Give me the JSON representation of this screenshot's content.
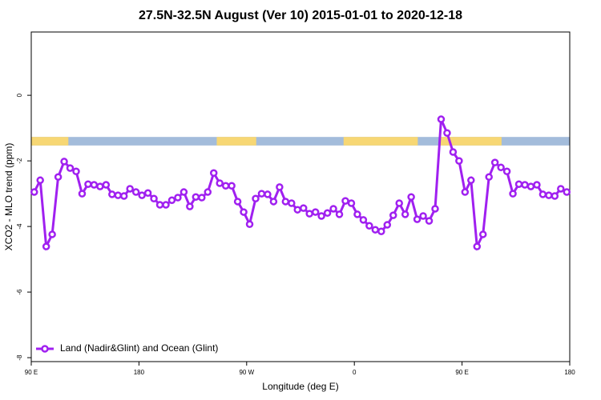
{
  "chart_data": {
    "type": "line",
    "title": "27.5N-32.5N August (Ver 10)   2015-01-01 to 2020-12-18",
    "x_label": "Longitude (deg E)",
    "y_label": "XCO2 - MLO trend (ppm)",
    "xlim": [
      90,
      540
    ],
    "xticks": [
      {
        "value": 90,
        "label": "90 E"
      },
      180,
      {
        "value": 270,
        "label": "90 W"
      },
      {
        "value": 360,
        "label": "0"
      },
      {
        "value": 450,
        "label": "90 E"
      },
      {
        "value": 540,
        "label": "180"
      }
    ],
    "ylim": [
      -8.12,
      1.93
    ],
    "yticks": [
      -8,
      -6,
      -4,
      -2,
      0
    ],
    "legend_position": "bottom-left",
    "land_ocean_band": {
      "ylim": [
        -1.53,
        -1.27
      ],
      "land_color": "#f7d774",
      "ocean_color": "#a3bcdb",
      "land": [
        [
          90,
          121
        ],
        [
          245,
          278
        ],
        [
          351,
          413
        ],
        [
          431,
          483
        ]
      ]
    },
    "x": [
      92.5,
      97.5,
      102.5,
      107.5,
      112.5,
      117.5,
      122.5,
      127.5,
      132.5,
      137.5,
      142.5,
      147.5,
      152.5,
      157.5,
      162.5,
      167.5,
      172.5,
      177.5,
      182.5,
      187.5,
      192.5,
      197.5,
      202.5,
      207.5,
      212.5,
      217.5,
      222.5,
      227.5,
      232.5,
      237.5,
      242.5,
      247.5,
      252.5,
      257.5,
      262.5,
      267.5,
      272.5,
      277.5,
      282.5,
      287.5,
      292.5,
      297.5,
      302.5,
      307.5,
      312.5,
      317.5,
      322.5,
      327.5,
      332.5,
      337.5,
      342.5,
      347.5,
      352.5,
      357.5,
      362.5,
      367.5,
      372.5,
      377.5,
      382.5,
      387.5,
      392.5,
      397.5,
      402.5,
      407.5,
      412.5,
      417.5,
      422.5,
      427.5,
      432.5,
      437.5,
      442.5,
      447.5,
      452.5,
      457.5,
      462.5,
      467.5,
      472.5,
      477.5,
      482.5,
      487.5,
      492.5,
      497.5,
      502.5,
      507.5,
      512.5,
      517.5,
      522.5,
      527.5,
      532.5,
      537.5
    ],
    "series": [
      {
        "name": "Land (Nadir&Glint) and Ocean (Glint)",
        "color": "#a020f0",
        "values": [
          -2.95,
          -2.59,
          -4.61,
          -4.24,
          -2.49,
          -2.02,
          -2.22,
          -2.32,
          -3.0,
          -2.71,
          -2.73,
          -2.78,
          -2.73,
          -3.02,
          -3.05,
          -3.07,
          -2.85,
          -2.95,
          -3.05,
          -2.98,
          -3.15,
          -3.34,
          -3.34,
          -3.2,
          -3.12,
          -2.95,
          -3.39,
          -3.1,
          -3.12,
          -2.95,
          -2.37,
          -2.68,
          -2.76,
          -2.76,
          -3.24,
          -3.56,
          -3.93,
          -3.15,
          -3.0,
          -3.02,
          -3.24,
          -2.8,
          -3.24,
          -3.29,
          -3.49,
          -3.44,
          -3.61,
          -3.56,
          -3.68,
          -3.59,
          -3.46,
          -3.63,
          -3.22,
          -3.29,
          -3.63,
          -3.8,
          -3.98,
          -4.1,
          -4.15,
          -3.95,
          -3.66,
          -3.29,
          -3.63,
          -3.1,
          -3.78,
          -3.68,
          -3.83,
          -3.46,
          -0.73,
          -1.15,
          -1.73,
          -2.0,
          -2.95,
          -2.59,
          -4.61,
          -4.24,
          -2.49,
          -2.05,
          -2.2,
          -2.32,
          -3.0,
          -2.71,
          -2.73,
          -2.78,
          -2.73,
          -3.02,
          -3.05,
          -3.07,
          -2.85,
          -2.95
        ]
      }
    ]
  }
}
